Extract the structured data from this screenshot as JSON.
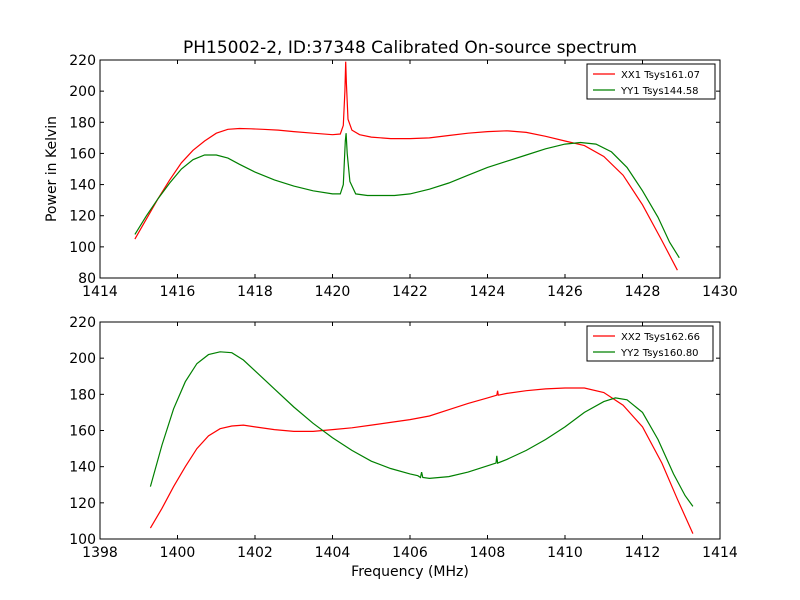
{
  "figure": {
    "title": "PH15002-2, ID:37348 Calibrated On-source spectrum",
    "ylabel": "Power in Kelvin",
    "xlabel": "Frequency (MHz)"
  },
  "chart_data": [
    {
      "type": "line",
      "title": "PH15002-2, ID:37348 Calibrated On-source spectrum",
      "xlabel": "",
      "ylabel": "Power in Kelvin",
      "xlim": [
        1414,
        1430
      ],
      "ylim": [
        80,
        220
      ],
      "xticks": [
        1414,
        1416,
        1418,
        1420,
        1422,
        1424,
        1426,
        1428,
        1430
      ],
      "yticks": [
        80,
        100,
        120,
        140,
        160,
        180,
        200,
        220
      ],
      "grid": false,
      "legend_position": "top-right",
      "series": [
        {
          "name": "XX1 Tsys161.07",
          "color": "#ff0000",
          "points": [
            [
              1414.9,
              105
            ],
            [
              1415.2,
              118
            ],
            [
              1415.5,
              131
            ],
            [
              1415.8,
              143
            ],
            [
              1416.1,
              154
            ],
            [
              1416.4,
              162
            ],
            [
              1416.7,
              168
            ],
            [
              1417.0,
              173
            ],
            [
              1417.3,
              175.5
            ],
            [
              1417.6,
              176
            ],
            [
              1417.9,
              175.8
            ],
            [
              1418.2,
              175.5
            ],
            [
              1418.6,
              175
            ],
            [
              1419.0,
              174
            ],
            [
              1419.5,
              173
            ],
            [
              1420.0,
              172
            ],
            [
              1420.2,
              172.5
            ],
            [
              1420.28,
              178
            ],
            [
              1420.32,
              200
            ],
            [
              1420.34,
              219
            ],
            [
              1420.36,
              205
            ],
            [
              1420.4,
              182
            ],
            [
              1420.5,
              175
            ],
            [
              1420.7,
              172
            ],
            [
              1421.0,
              170.5
            ],
            [
              1421.5,
              169.5
            ],
            [
              1422.0,
              169.5
            ],
            [
              1422.5,
              170
            ],
            [
              1423.0,
              171.5
            ],
            [
              1423.5,
              173
            ],
            [
              1424.0,
              174
            ],
            [
              1424.5,
              174.5
            ],
            [
              1425.0,
              173.5
            ],
            [
              1425.5,
              171
            ],
            [
              1426.0,
              168
            ],
            [
              1426.5,
              165
            ],
            [
              1427.0,
              158
            ],
            [
              1427.5,
              146
            ],
            [
              1428.0,
              127
            ],
            [
              1428.5,
              104
            ],
            [
              1428.9,
              85
            ]
          ]
        },
        {
          "name": "YY1 Tsys144.58",
          "color": "#008000",
          "points": [
            [
              1414.9,
              108
            ],
            [
              1415.2,
              120
            ],
            [
              1415.5,
              131
            ],
            [
              1415.8,
              141
            ],
            [
              1416.1,
              150
            ],
            [
              1416.4,
              156
            ],
            [
              1416.7,
              159
            ],
            [
              1417.0,
              159
            ],
            [
              1417.3,
              157
            ],
            [
              1417.6,
              153
            ],
            [
              1418.0,
              148
            ],
            [
              1418.5,
              143
            ],
            [
              1419.0,
              139
            ],
            [
              1419.5,
              136
            ],
            [
              1420.0,
              134
            ],
            [
              1420.2,
              134
            ],
            [
              1420.28,
              140
            ],
            [
              1420.33,
              168
            ],
            [
              1420.35,
              173
            ],
            [
              1420.38,
              160
            ],
            [
              1420.45,
              142
            ],
            [
              1420.6,
              134
            ],
            [
              1420.9,
              133
            ],
            [
              1421.2,
              133
            ],
            [
              1421.6,
              133
            ],
            [
              1422.0,
              134
            ],
            [
              1422.5,
              137
            ],
            [
              1423.0,
              141
            ],
            [
              1423.5,
              146
            ],
            [
              1424.0,
              151
            ],
            [
              1424.5,
              155
            ],
            [
              1425.0,
              159
            ],
            [
              1425.5,
              163
            ],
            [
              1426.0,
              166
            ],
            [
              1426.4,
              167
            ],
            [
              1426.8,
              166
            ],
            [
              1427.2,
              161
            ],
            [
              1427.6,
              151
            ],
            [
              1428.0,
              136
            ],
            [
              1428.4,
              119
            ],
            [
              1428.7,
              103
            ],
            [
              1428.95,
              93
            ]
          ]
        }
      ]
    },
    {
      "type": "line",
      "title": "",
      "xlabel": "Frequency (MHz)",
      "ylabel": "",
      "xlim": [
        1398,
        1414
      ],
      "ylim": [
        100,
        220
      ],
      "xticks": [
        1398,
        1400,
        1402,
        1404,
        1406,
        1408,
        1410,
        1412,
        1414
      ],
      "yticks": [
        100,
        120,
        140,
        160,
        180,
        200,
        220
      ],
      "grid": false,
      "legend_position": "top-right",
      "series": [
        {
          "name": "XX2 Tsys162.66",
          "color": "#ff0000",
          "points": [
            [
              1399.3,
              106
            ],
            [
              1399.6,
              117
            ],
            [
              1399.9,
              129
            ],
            [
              1400.2,
              140
            ],
            [
              1400.5,
              150
            ],
            [
              1400.8,
              157
            ],
            [
              1401.1,
              161
            ],
            [
              1401.4,
              162.5
            ],
            [
              1401.7,
              163
            ],
            [
              1402.0,
              162
            ],
            [
              1402.5,
              160.5
            ],
            [
              1403.0,
              159.5
            ],
            [
              1403.5,
              159.5
            ],
            [
              1404.0,
              160.5
            ],
            [
              1404.5,
              161.5
            ],
            [
              1405.0,
              163
            ],
            [
              1405.5,
              164.5
            ],
            [
              1406.0,
              166
            ],
            [
              1406.5,
              168
            ],
            [
              1407.0,
              171.5
            ],
            [
              1407.5,
              175
            ],
            [
              1408.0,
              178
            ],
            [
              1408.24,
              179.5
            ],
            [
              1408.26,
              182
            ],
            [
              1408.28,
              179.5
            ],
            [
              1408.5,
              180.5
            ],
            [
              1409.0,
              182
            ],
            [
              1409.5,
              183
            ],
            [
              1410.0,
              183.5
            ],
            [
              1410.5,
              183.5
            ],
            [
              1411.0,
              181
            ],
            [
              1411.5,
              174
            ],
            [
              1412.0,
              162
            ],
            [
              1412.5,
              142
            ],
            [
              1412.9,
              122
            ],
            [
              1413.3,
              103
            ]
          ]
        },
        {
          "name": "YY2 Tsys160.80",
          "color": "#008000",
          "points": [
            [
              1399.3,
              129
            ],
            [
              1399.6,
              152
            ],
            [
              1399.9,
              172
            ],
            [
              1400.2,
              187
            ],
            [
              1400.5,
              197
            ],
            [
              1400.8,
              202
            ],
            [
              1401.1,
              203.5
            ],
            [
              1401.4,
              203
            ],
            [
              1401.7,
              199
            ],
            [
              1402.0,
              193
            ],
            [
              1402.5,
              183
            ],
            [
              1403.0,
              173
            ],
            [
              1403.5,
              164
            ],
            [
              1404.0,
              156
            ],
            [
              1404.5,
              149
            ],
            [
              1405.0,
              143
            ],
            [
              1405.5,
              139
            ],
            [
              1406.0,
              136
            ],
            [
              1406.2,
              135
            ],
            [
              1406.27,
              134
            ],
            [
              1406.3,
              137
            ],
            [
              1406.33,
              134
            ],
            [
              1406.5,
              133.5
            ],
            [
              1407.0,
              134.5
            ],
            [
              1407.5,
              137
            ],
            [
              1408.0,
              140.5
            ],
            [
              1408.22,
              142
            ],
            [
              1408.24,
              146
            ],
            [
              1408.26,
              142
            ],
            [
              1408.5,
              144
            ],
            [
              1409.0,
              149
            ],
            [
              1409.5,
              155
            ],
            [
              1410.0,
              162
            ],
            [
              1410.5,
              170
            ],
            [
              1411.0,
              176
            ],
            [
              1411.3,
              178
            ],
            [
              1411.6,
              177
            ],
            [
              1412.0,
              170
            ],
            [
              1412.4,
              155
            ],
            [
              1412.8,
              136
            ],
            [
              1413.1,
              124
            ],
            [
              1413.3,
              118
            ]
          ]
        }
      ]
    }
  ]
}
